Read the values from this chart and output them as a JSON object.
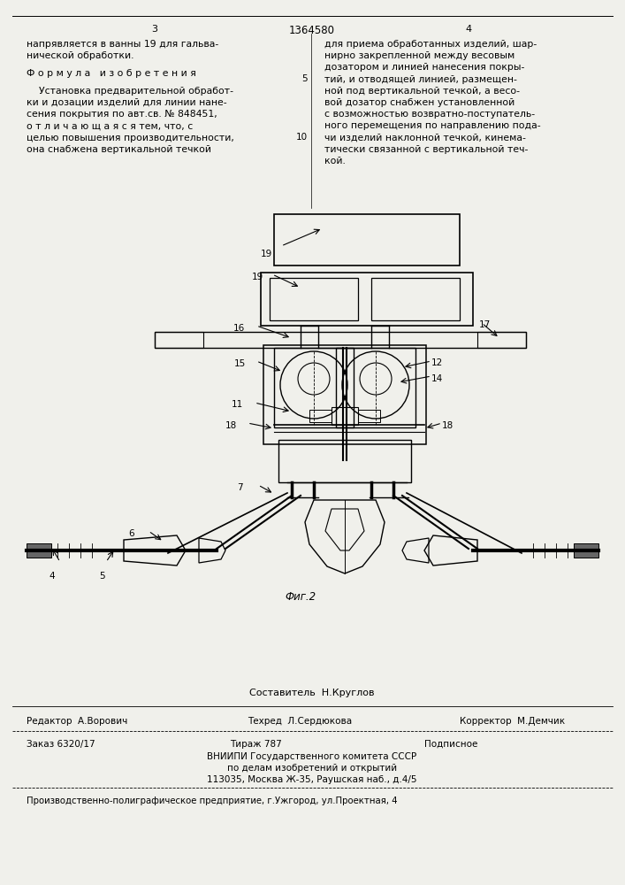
{
  "bg_color": "#f0f0eb",
  "header": {
    "left_page_num": "3",
    "center_patent_num": "1364580",
    "right_page_num": "4"
  },
  "left_col_lines": [
    "напрявляется в ванны 19 для гальва-",
    "нической обработки.",
    "",
    "Ф о р м у л а   и з о б р е т е н и я",
    "",
    "    Установка предварительной обработ-",
    "ки и дозации изделий для линии нане-",
    "сения покрытия по авт.св. № 848451,",
    "о т л и ч а ю щ а я с я тем, что, с",
    "целью повышения производительности,",
    "она снабжена вертикальной течкой"
  ],
  "right_col_lines": [
    "для приема обработанных изделий, шар-",
    "нирно закрепленной между весовым",
    "дозатором и линией нанесения покры-",
    "тий, и отводящей линией, размещен-",
    "ной под вертикальной течкой, а весо-",
    "вой дозатор снабжен установленной",
    "с возможностью возвратно-поступатель-",
    "ного перемещения по направлению пода-",
    "чи изделий наклонной течкой, кинема-",
    "тически связанной с вертикальной теч-",
    "кой."
  ],
  "fig_caption": "Фиг.2",
  "composer": "Составитель  Н.Круглов",
  "editor": "Редактор  А.Ворович",
  "techred": "Техред  Л.Сердюкова",
  "corrector": "Корректор  М.Демчик",
  "order": "Заказ 6320/17",
  "tirazh": "Тираж 787",
  "podpisnoe": "Подписное",
  "vnipi1": "ВНИИПИ Государственного комитета СССР",
  "vnipi2": "по делам изобретений и открытий",
  "vnipi3": "113035, Москва Ж-35, Раушская наб., д.4/5",
  "bottom": "Производственно-полиграфическое предприятие, г.Ужгород, ул.Проектная, 4"
}
